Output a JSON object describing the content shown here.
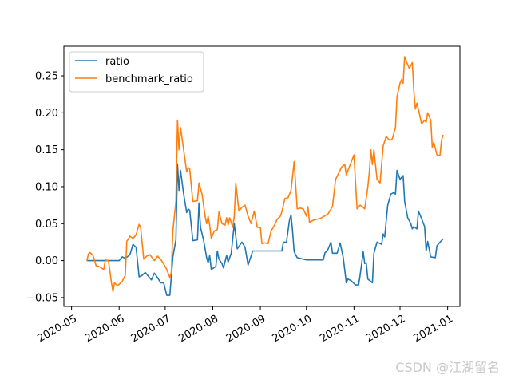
{
  "chart_data": {
    "type": "line",
    "x_type": "date",
    "xlim": [
      "2020-04-26",
      "2021-01-09"
    ],
    "ylim": [
      -0.062,
      0.29
    ],
    "x_ticks": [
      "2020-05-01",
      "2020-06-01",
      "2020-07-01",
      "2020-08-01",
      "2020-09-01",
      "2020-10-01",
      "2020-11-01",
      "2020-12-01",
      "2021-01-01"
    ],
    "x_tick_labels": [
      "2020-05",
      "2020-06",
      "2020-07",
      "2020-08",
      "2020-09",
      "2020-10",
      "2020-11",
      "2020-12",
      "2021-01"
    ],
    "y_ticks": [
      -0.05,
      0.0,
      0.05,
      0.1,
      0.15,
      0.2,
      0.25
    ],
    "y_tick_labels": [
      "−0.05",
      "0.00",
      "0.05",
      "0.10",
      "0.15",
      "0.20",
      "0.25"
    ],
    "grid": false,
    "legend_position": "top-left",
    "series": [
      {
        "name": "ratio",
        "color": "#1f77b4",
        "points": [
          [
            "2020-05-11",
            0.0
          ],
          [
            "2020-06-01",
            0.0
          ],
          [
            "2020-06-03",
            0.005
          ],
          [
            "2020-06-05",
            0.003
          ],
          [
            "2020-06-08",
            0.008
          ],
          [
            "2020-06-10",
            0.022
          ],
          [
            "2020-06-12",
            0.018
          ],
          [
            "2020-06-14",
            -0.022
          ],
          [
            "2020-06-16",
            -0.02
          ],
          [
            "2020-06-18",
            -0.016
          ],
          [
            "2020-06-22",
            -0.026
          ],
          [
            "2020-06-24",
            -0.017
          ],
          [
            "2020-06-26",
            -0.023
          ],
          [
            "2020-06-28",
            -0.03
          ],
          [
            "2020-06-30",
            -0.03
          ],
          [
            "2020-07-02",
            -0.047
          ],
          [
            "2020-07-04",
            -0.047
          ],
          [
            "2020-07-06",
            0.005
          ],
          [
            "2020-07-08",
            0.028
          ],
          [
            "2020-07-09",
            0.131
          ],
          [
            "2020-07-10",
            0.095
          ],
          [
            "2020-07-11",
            0.122
          ],
          [
            "2020-07-13",
            0.09
          ],
          [
            "2020-07-15",
            0.065
          ],
          [
            "2020-07-16",
            0.07
          ],
          [
            "2020-07-17",
            0.068
          ],
          [
            "2020-07-19",
            0.027
          ],
          [
            "2020-07-22",
            0.028
          ],
          [
            "2020-07-23",
            0.078
          ],
          [
            "2020-07-24",
            0.045
          ],
          [
            "2020-07-26",
            0.028
          ],
          [
            "2020-07-28",
            0.004
          ],
          [
            "2020-07-29",
            -0.003
          ],
          [
            "2020-07-30",
            0.007
          ],
          [
            "2020-07-31",
            -0.012
          ],
          [
            "2020-08-03",
            -0.008
          ],
          [
            "2020-08-04",
            0.013
          ],
          [
            "2020-08-05",
            0.002
          ],
          [
            "2020-08-07",
            -0.004
          ],
          [
            "2020-08-08",
            -0.01
          ],
          [
            "2020-08-10",
            0.007
          ],
          [
            "2020-08-11",
            -0.002
          ],
          [
            "2020-08-13",
            0.01
          ],
          [
            "2020-08-15",
            0.05
          ],
          [
            "2020-08-17",
            0.016
          ],
          [
            "2020-08-20",
            0.025
          ],
          [
            "2020-08-22",
            0.018
          ],
          [
            "2020-08-24",
            -0.006
          ],
          [
            "2020-08-27",
            0.013
          ],
          [
            "2020-09-03",
            0.013
          ],
          [
            "2020-09-10",
            0.013
          ],
          [
            "2020-09-15",
            0.013
          ],
          [
            "2020-09-16",
            0.025
          ],
          [
            "2020-09-18",
            0.025
          ],
          [
            "2020-09-20",
            0.055
          ],
          [
            "2020-09-21",
            0.062
          ],
          [
            "2020-09-22",
            0.04
          ],
          [
            "2020-09-23",
            0.012
          ],
          [
            "2020-09-25",
            0.004
          ],
          [
            "2020-10-01",
            0.001
          ],
          [
            "2020-10-12",
            0.001
          ],
          [
            "2020-10-13",
            0.01
          ],
          [
            "2020-10-15",
            0.015
          ],
          [
            "2020-10-17",
            0.025
          ],
          [
            "2020-10-18",
            0.01
          ],
          [
            "2020-10-21",
            0.01
          ],
          [
            "2020-10-23",
            0.024
          ],
          [
            "2020-10-25",
            0.004
          ],
          [
            "2020-10-27",
            -0.03
          ],
          [
            "2020-10-28",
            -0.025
          ],
          [
            "2020-10-30",
            -0.027
          ],
          [
            "2020-11-02",
            -0.033
          ],
          [
            "2020-11-04",
            -0.033
          ],
          [
            "2020-11-05",
            -0.02
          ],
          [
            "2020-11-07",
            0.012
          ],
          [
            "2020-11-08",
            -0.004
          ],
          [
            "2020-11-09",
            -0.003
          ],
          [
            "2020-11-10",
            -0.025
          ],
          [
            "2020-11-13",
            -0.03
          ],
          [
            "2020-11-14",
            0.01
          ],
          [
            "2020-11-16",
            0.025
          ],
          [
            "2020-11-19",
            0.022
          ],
          [
            "2020-11-20",
            0.036
          ],
          [
            "2020-11-21",
            0.032
          ],
          [
            "2020-11-23",
            0.075
          ],
          [
            "2020-11-25",
            0.09
          ],
          [
            "2020-11-27",
            0.092
          ],
          [
            "2020-11-28",
            0.09
          ],
          [
            "2020-11-29",
            0.122
          ],
          [
            "2020-12-01",
            0.11
          ],
          [
            "2020-12-03",
            0.115
          ],
          [
            "2020-12-04",
            0.08
          ],
          [
            "2020-12-06",
            0.058
          ],
          [
            "2020-12-08",
            0.05
          ],
          [
            "2020-12-09",
            0.043
          ],
          [
            "2020-12-10",
            0.046
          ],
          [
            "2020-12-12",
            0.043
          ],
          [
            "2020-12-13",
            0.067
          ],
          [
            "2020-12-15",
            0.057
          ],
          [
            "2020-12-17",
            0.046
          ],
          [
            "2020-12-18",
            0.013
          ],
          [
            "2020-12-19",
            0.026
          ],
          [
            "2020-12-21",
            0.005
          ],
          [
            "2020-12-24",
            0.004
          ],
          [
            "2020-12-25",
            0.02
          ],
          [
            "2020-12-27",
            0.025
          ],
          [
            "2020-12-29",
            0.029
          ]
        ]
      },
      {
        "name": "benchmark_ratio",
        "color": "#ff7f0e",
        "points": [
          [
            "2020-05-11",
            0.0
          ],
          [
            "2020-05-12",
            0.009
          ],
          [
            "2020-05-13",
            0.011
          ],
          [
            "2020-05-15",
            0.007
          ],
          [
            "2020-05-17",
            -0.007
          ],
          [
            "2020-05-19",
            -0.008
          ],
          [
            "2020-05-22",
            -0.012
          ],
          [
            "2020-05-23",
            0.001
          ],
          [
            "2020-05-25",
            0.0
          ],
          [
            "2020-05-27",
            -0.03
          ],
          [
            "2020-05-28",
            -0.042
          ],
          [
            "2020-05-29",
            -0.03
          ],
          [
            "2020-05-31",
            -0.034
          ],
          [
            "2020-06-03",
            -0.028
          ],
          [
            "2020-06-05",
            -0.02
          ],
          [
            "2020-06-06",
            0.026
          ],
          [
            "2020-06-08",
            0.033
          ],
          [
            "2020-06-10",
            0.03
          ],
          [
            "2020-06-12",
            0.035
          ],
          [
            "2020-06-14",
            0.049
          ],
          [
            "2020-06-15",
            0.045
          ],
          [
            "2020-06-17",
            0.002
          ],
          [
            "2020-06-19",
            0.006
          ],
          [
            "2020-06-21",
            0.008
          ],
          [
            "2020-06-24",
            0.0
          ],
          [
            "2020-06-26",
            0.006
          ],
          [
            "2020-06-28",
            0.002
          ],
          [
            "2020-07-01",
            -0.008
          ],
          [
            "2020-07-02",
            -0.012
          ],
          [
            "2020-07-04",
            -0.023
          ],
          [
            "2020-07-05",
            -0.016
          ],
          [
            "2020-07-06",
            0.04
          ],
          [
            "2020-07-08",
            0.08
          ],
          [
            "2020-07-09",
            0.19
          ],
          [
            "2020-07-10",
            0.15
          ],
          [
            "2020-07-11",
            0.18
          ],
          [
            "2020-07-13",
            0.15
          ],
          [
            "2020-07-15",
            0.12
          ],
          [
            "2020-07-16",
            0.126
          ],
          [
            "2020-07-17",
            0.124
          ],
          [
            "2020-07-19",
            0.08
          ],
          [
            "2020-07-22",
            0.081
          ],
          [
            "2020-07-23",
            0.105
          ],
          [
            "2020-07-25",
            0.09
          ],
          [
            "2020-07-27",
            0.06
          ],
          [
            "2020-07-28",
            0.05
          ],
          [
            "2020-07-29",
            0.06
          ],
          [
            "2020-07-30",
            0.048
          ],
          [
            "2020-07-31",
            0.03
          ],
          [
            "2020-08-02",
            0.04
          ],
          [
            "2020-08-04",
            0.042
          ],
          [
            "2020-08-05",
            0.066
          ],
          [
            "2020-08-07",
            0.05
          ],
          [
            "2020-08-09",
            0.048
          ],
          [
            "2020-08-10",
            0.058
          ],
          [
            "2020-08-11",
            0.048
          ],
          [
            "2020-08-12",
            0.058
          ],
          [
            "2020-08-14",
            0.045
          ],
          [
            "2020-08-15",
            0.06
          ],
          [
            "2020-08-16",
            0.105
          ],
          [
            "2020-08-18",
            0.067
          ],
          [
            "2020-08-20",
            0.072
          ],
          [
            "2020-08-22",
            0.075
          ],
          [
            "2020-08-24",
            0.06
          ],
          [
            "2020-08-26",
            0.05
          ],
          [
            "2020-08-28",
            0.067
          ],
          [
            "2020-08-30",
            0.045
          ],
          [
            "2020-09-01",
            0.045
          ],
          [
            "2020-09-02",
            0.023
          ],
          [
            "2020-09-04",
            0.024
          ],
          [
            "2020-09-06",
            0.023
          ],
          [
            "2020-09-08",
            0.04
          ],
          [
            "2020-09-10",
            0.047
          ],
          [
            "2020-09-12",
            0.056
          ],
          [
            "2020-09-14",
            0.06
          ],
          [
            "2020-09-15",
            0.066
          ],
          [
            "2020-09-17",
            0.084
          ],
          [
            "2020-09-19",
            0.085
          ],
          [
            "2020-09-21",
            0.095
          ],
          [
            "2020-09-23",
            0.134
          ],
          [
            "2020-09-25",
            0.07
          ],
          [
            "2020-09-27",
            0.071
          ],
          [
            "2020-09-29",
            0.07
          ],
          [
            "2020-10-01",
            0.06
          ],
          [
            "2020-10-02",
            0.073
          ],
          [
            "2020-10-03",
            0.052
          ],
          [
            "2020-10-06",
            0.055
          ],
          [
            "2020-10-10",
            0.057
          ],
          [
            "2020-10-15",
            0.063
          ],
          [
            "2020-10-18",
            0.073
          ],
          [
            "2020-10-20",
            0.11
          ],
          [
            "2020-10-22",
            0.118
          ],
          [
            "2020-10-24",
            0.127
          ],
          [
            "2020-10-26",
            0.13
          ],
          [
            "2020-10-27",
            0.116
          ],
          [
            "2020-10-29",
            0.127
          ],
          [
            "2020-11-01",
            0.143
          ],
          [
            "2020-11-03",
            0.07
          ],
          [
            "2020-11-05",
            0.075
          ],
          [
            "2020-11-07",
            0.072
          ],
          [
            "2020-11-08",
            0.07
          ],
          [
            "2020-11-10",
            0.1
          ],
          [
            "2020-11-11",
            0.12
          ],
          [
            "2020-11-12",
            0.15
          ],
          [
            "2020-11-13",
            0.13
          ],
          [
            "2020-11-14",
            0.15
          ],
          [
            "2020-11-16",
            0.11
          ],
          [
            "2020-11-18",
            0.105
          ],
          [
            "2020-11-20",
            0.155
          ],
          [
            "2020-11-22",
            0.168
          ],
          [
            "2020-11-24",
            0.163
          ],
          [
            "2020-11-25",
            0.163
          ],
          [
            "2020-11-26",
            0.165
          ],
          [
            "2020-11-28",
            0.18
          ],
          [
            "2020-11-29",
            0.222
          ],
          [
            "2020-12-01",
            0.24
          ],
          [
            "2020-12-02",
            0.245
          ],
          [
            "2020-12-03",
            0.24
          ],
          [
            "2020-12-04",
            0.276
          ],
          [
            "2020-12-05",
            0.27
          ],
          [
            "2020-12-07",
            0.26
          ],
          [
            "2020-12-09",
            0.268
          ],
          [
            "2020-12-10",
            0.23
          ],
          [
            "2020-12-11",
            0.205
          ],
          [
            "2020-12-12",
            0.213
          ],
          [
            "2020-12-14",
            0.195
          ],
          [
            "2020-12-15",
            0.185
          ],
          [
            "2020-12-17",
            0.19
          ],
          [
            "2020-12-18",
            0.187
          ],
          [
            "2020-12-19",
            0.2
          ],
          [
            "2020-12-21",
            0.19
          ],
          [
            "2020-12-22",
            0.153
          ],
          [
            "2020-12-23",
            0.16
          ],
          [
            "2020-12-25",
            0.143
          ],
          [
            "2020-12-27",
            0.142
          ],
          [
            "2020-12-28",
            0.162
          ],
          [
            "2020-12-29",
            0.17
          ]
        ]
      }
    ]
  },
  "watermark": "CSDN @江湖留名"
}
